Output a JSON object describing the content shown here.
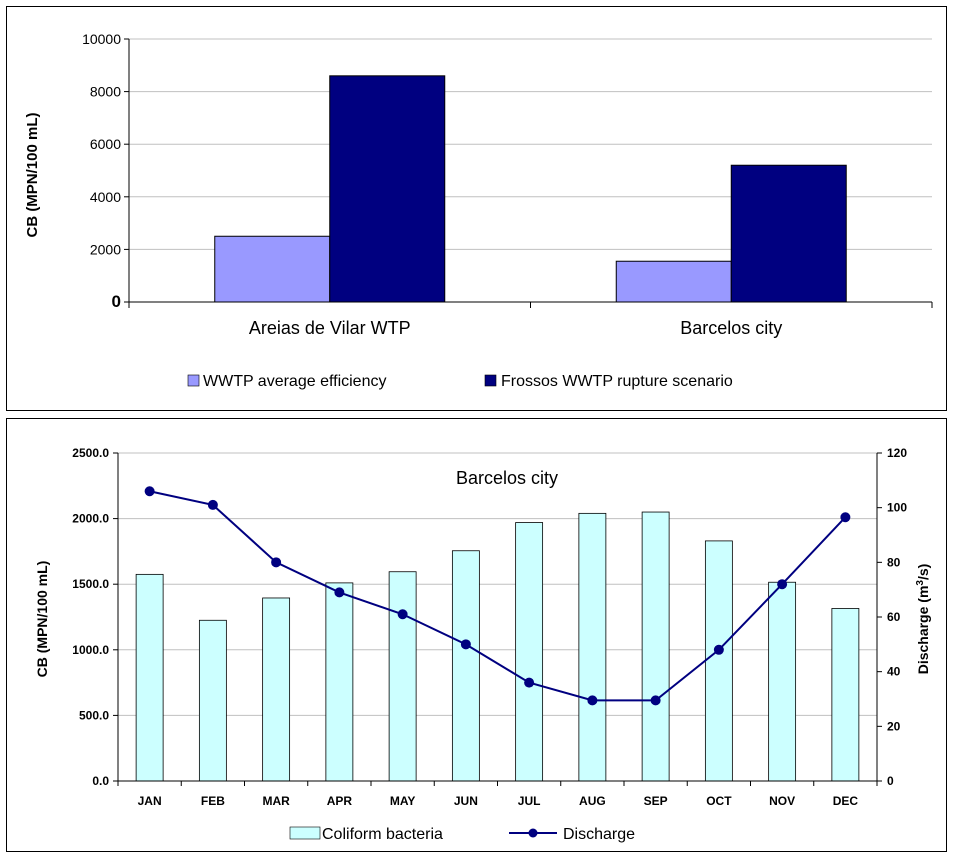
{
  "colors": {
    "series_light": "#9999ff",
    "series_dark": "#000080",
    "bar_cyan": "#ccffff",
    "line_navy": "#000080",
    "gridline": "#c0c0c0"
  },
  "chart_data": [
    {
      "type": "bar",
      "title": "",
      "xlabel": "",
      "ylabel": "CB (MPN/100 mL)",
      "categories": [
        "Areias de Vilar WTP",
        "Barcelos city"
      ],
      "series": [
        {
          "name": "WWTP average efficiency",
          "values": [
            2500,
            1550
          ]
        },
        {
          "name": "Frossos WWTP rupture scenario",
          "values": [
            8600,
            5200
          ]
        }
      ],
      "ylim": [
        0,
        10000
      ],
      "yticks": [
        "0",
        "2000",
        "4000",
        "6000",
        "8000",
        "10000"
      ],
      "grid": true,
      "legend": "bottom"
    },
    {
      "type": "bar",
      "title": "Barcelos city",
      "xlabel": "",
      "ylabel": "CB (MPN/100 mL)",
      "y2label_main": "Discharge (m",
      "y2label_sup": "3",
      "y2label_end": "/s)",
      "categories": [
        "JAN",
        "FEB",
        "MAR",
        "APR",
        "MAY",
        "JUN",
        "JUL",
        "AUG",
        "SEP",
        "OCT",
        "NOV",
        "DEC"
      ],
      "series": [
        {
          "name": "Coliform bacteria",
          "type": "bar",
          "axis": "left",
          "values": [
            1575,
            1225,
            1395,
            1510,
            1595,
            1755,
            1970,
            2040,
            2050,
            1830,
            1515,
            1315
          ]
        },
        {
          "name": "Discharge",
          "type": "line",
          "axis": "right",
          "values": [
            106,
            101,
            80,
            69,
            61,
            50,
            36,
            29.5,
            29.5,
            48,
            72,
            96.5
          ]
        }
      ],
      "ylim": [
        0,
        2500
      ],
      "y2lim": [
        0,
        120
      ],
      "yticks": [
        "0.0",
        "500.0",
        "1000.0",
        "1500.0",
        "2000.0",
        "2500.0"
      ],
      "y2ticks": [
        "0",
        "20",
        "40",
        "60",
        "80",
        "100",
        "120"
      ],
      "grid": true,
      "legend": "bottom"
    }
  ]
}
